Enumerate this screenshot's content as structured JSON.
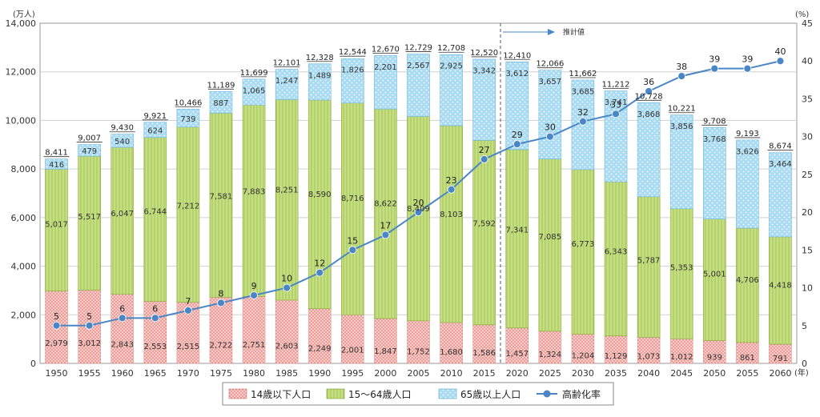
{
  "chart_data": {
    "type": "bar",
    "stacked": true,
    "categories": [
      "1950",
      "1955",
      "1960",
      "1965",
      "1970",
      "1975",
      "1980",
      "1985",
      "1990",
      "1995",
      "2000",
      "2005",
      "2010",
      "2015",
      "2020",
      "2025",
      "2030",
      "2035",
      "2040",
      "2045",
      "2050",
      "2055",
      "2060"
    ],
    "series": [
      {
        "name": "14歳以下人口",
        "values": [
          2979,
          3012,
          2843,
          2553,
          2515,
          2722,
          2751,
          2603,
          2249,
          2001,
          1847,
          1752,
          1680,
          1586,
          1457,
          1324,
          1204,
          1129,
          1073,
          1012,
          939,
          861,
          791
        ],
        "color": "#f4c2bf",
        "pattern": "dots-red"
      },
      {
        "name": "15～64歳人口",
        "values": [
          5017,
          5517,
          6047,
          6744,
          7212,
          7581,
          7883,
          8251,
          8590,
          8716,
          8622,
          8409,
          8103,
          7592,
          7341,
          7085,
          6773,
          6343,
          5787,
          5353,
          5001,
          4706,
          4418
        ],
        "color": "#c4dd7c",
        "pattern": "vertical-lines-green"
      },
      {
        "name": "65歳以上人口",
        "values": [
          416,
          479,
          540,
          624,
          739,
          887,
          1065,
          1247,
          1489,
          1826,
          2201,
          2567,
          2925,
          3342,
          3612,
          3657,
          3685,
          3741,
          3868,
          3856,
          3768,
          3626,
          3464
        ],
        "color": "#bfe3f4",
        "pattern": "dots-blue"
      }
    ],
    "totals": [
      8411,
      9007,
      9430,
      9921,
      10466,
      11189,
      11699,
      12101,
      12328,
      12544,
      12670,
      12729,
      12708,
      12520,
      12410,
      12066,
      11662,
      11212,
      10728,
      10221,
      9708,
      9193,
      8674
    ],
    "line_series": {
      "name": "高齢化率",
      "values": [
        5,
        5,
        6,
        6,
        7,
        8,
        9,
        10,
        12,
        15,
        17,
        20,
        23,
        27,
        29,
        30,
        32,
        33,
        36,
        38,
        39,
        39,
        40
      ],
      "color": "#4a86c5",
      "axis": "right"
    },
    "y_left": {
      "unit": "(万人)",
      "ylim": [
        0,
        14000
      ],
      "ticks": [
        "0",
        "2,000",
        "4,000",
        "6,000",
        "8,000",
        "10,000",
        "12,000",
        "14,000"
      ]
    },
    "y_right": {
      "unit": "(%)",
      "ylim": [
        0,
        45
      ],
      "ticks": [
        "0",
        "5",
        "10",
        "15",
        "20",
        "25",
        "30",
        "35",
        "40",
        "45"
      ]
    },
    "x_unit": "(年)",
    "annotation": {
      "text": "推計値",
      "from_category": "2020"
    },
    "grid": true,
    "legend": {
      "position": "bottom",
      "items": [
        "14歳以下人口",
        "15～64歳人口",
        "65歳以上人口",
        "高齢化率"
      ]
    }
  }
}
